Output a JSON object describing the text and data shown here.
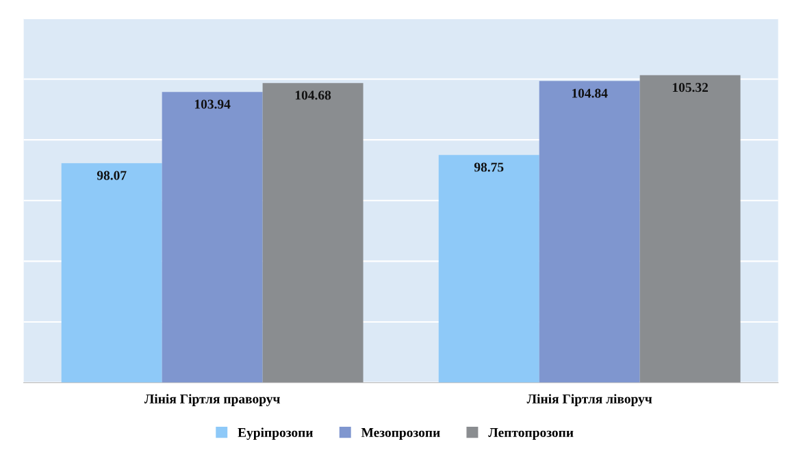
{
  "chart_data": {
    "type": "bar",
    "categories": [
      "Лінія Гіртля праворуч",
      "Лінія Гіртля ліворуч"
    ],
    "series": [
      {
        "name": "Еуріпрозопи",
        "color": "#8ec9f8",
        "values": [
          98.07,
          98.75
        ]
      },
      {
        "name": "Мезопрозопи",
        "color": "#7f96cf",
        "values": [
          103.94,
          104.84
        ]
      },
      {
        "name": "Лептопрозопи",
        "color": "#8a8d90",
        "values": [
          104.68,
          105.32
        ]
      }
    ],
    "ylim": [
      80,
      110
    ],
    "yticks": [
      {
        "value": 80,
        "label": null
      },
      {
        "value": 85,
        "label": null
      },
      {
        "value": 90,
        "label": null
      },
      {
        "value": 95,
        "label": null
      },
      {
        "value": 100,
        "label": null
      },
      {
        "value": 105,
        "label": null
      },
      {
        "value": 110,
        "label": null
      }
    ],
    "tick_labels": "x",
    "grid": "y",
    "legend": "bottom",
    "data_labels": true
  }
}
